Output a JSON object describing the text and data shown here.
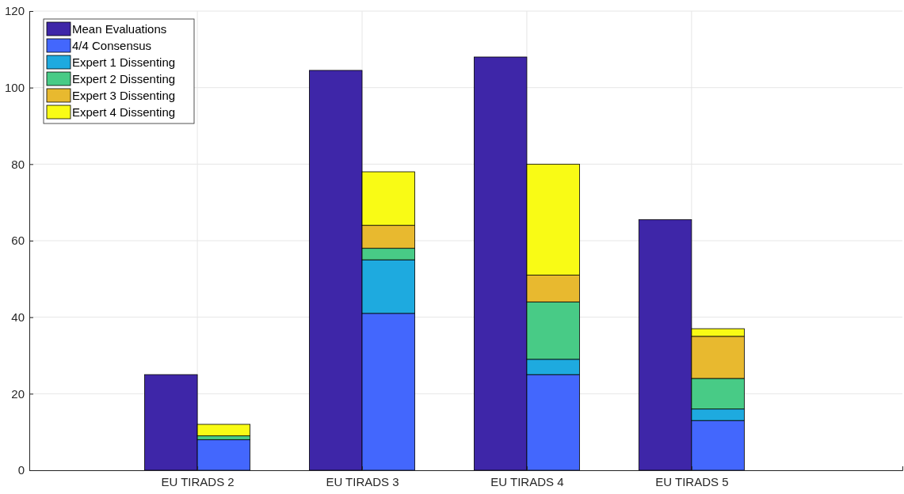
{
  "chart_data": {
    "type": "bar",
    "categories": [
      "EU TIRADS 2",
      "EU TIRADS 3",
      "EU TIRADS 4",
      "EU TIRADS 5"
    ],
    "ylim": [
      0,
      120
    ],
    "yticks": [
      0,
      20,
      40,
      60,
      80,
      100,
      120
    ],
    "grid": true,
    "legend": "top left",
    "series": [
      {
        "name": "Mean Evaluations",
        "color": "#3e26a8",
        "values": [
          25,
          104.5,
          108,
          65.5
        ],
        "base": [
          0,
          0,
          0,
          0
        ]
      },
      {
        "name": "4/4 Consensus",
        "color": "#4367fd",
        "values": [
          8,
          41,
          25,
          13
        ],
        "base": [
          0,
          0,
          0,
          0
        ]
      },
      {
        "name": "Expert 1 Dissenting",
        "color": "#1eaadf",
        "values": [
          null,
          14,
          4,
          3
        ],
        "base": [
          null,
          41,
          25,
          13
        ]
      },
      {
        "name": "Expert 2 Dissenting",
        "color": "#48cb86",
        "values": [
          1,
          3,
          15,
          8
        ],
        "base": [
          8,
          55,
          29,
          16
        ]
      },
      {
        "name": "Expert 3 Dissenting",
        "color": "#e8b92f",
        "values": [
          null,
          6,
          7,
          11
        ],
        "base": [
          null,
          58,
          44,
          24
        ]
      },
      {
        "name": "Expert 4 Dissenting",
        "color": "#f9fb15",
        "values": [
          3,
          14,
          29,
          2
        ],
        "base": [
          9,
          64,
          51,
          35
        ]
      }
    ]
  }
}
